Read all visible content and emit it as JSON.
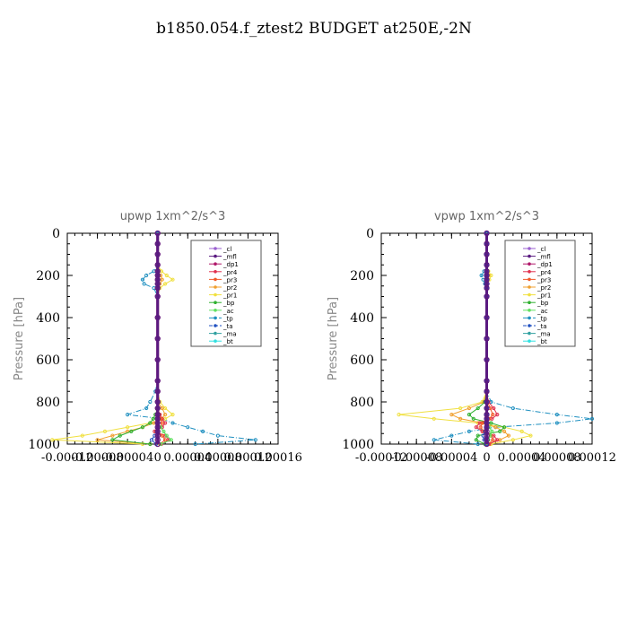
{
  "title": "b1850.054.f_ztest2  BUDGET at250E,-2N",
  "colors": {
    "_cl": "#9a5fd0",
    "_mfl": "#5a1a80",
    "_dp1": "#b0186a",
    "_pr4": "#e0304e",
    "_pr3": "#f05a2a",
    "_pr2": "#f0a030",
    "_pr1": "#f0e040",
    "_bp": "#30b030",
    "_ac": "#60e060",
    "_tp": "#2090c0",
    "_ta": "#2050c0",
    "_ma": "#30a0a0",
    "_bt": "#30e0e0"
  },
  "chart_data": [
    {
      "type": "line",
      "title": "upwp   1xm^2/s^3",
      "ylabel": "Pressure [hPa]",
      "xlabel": "",
      "xlim": [
        -0.00012,
        0.00016
      ],
      "ylim": [
        1000,
        0
      ],
      "x_ticks": [
        "-0.00012",
        "-0.00008",
        "-0.00004",
        "0",
        "0.00004",
        "0.00008",
        "0.00012",
        "0.00016"
      ],
      "y_ticks": [
        "0",
        "200",
        "400",
        "600",
        "800",
        "1000"
      ],
      "legend": [
        "_cl",
        "_mfl",
        "_dp1",
        "_pr4",
        "_pr3",
        "_pr2",
        "_pr1",
        "_bp",
        "_ac",
        "_tp",
        "_ta",
        "_ma",
        "_bt"
      ],
      "legend_position": "top-right",
      "pressure": [
        0,
        50,
        100,
        150,
        180,
        200,
        220,
        240,
        260,
        300,
        400,
        500,
        600,
        700,
        750,
        800,
        830,
        860,
        880,
        900,
        920,
        940,
        960,
        980,
        1000
      ],
      "series": [
        {
          "name": "_tp",
          "values": [
            0,
            0,
            0,
            0,
            -5e-06,
            -1.5e-05,
            -2e-05,
            -1.8e-05,
            -5e-06,
            0,
            0,
            0,
            0,
            0,
            -3e-06,
            -1e-05,
            -1.5e-05,
            -4e-05,
            5e-06,
            2e-05,
            4e-05,
            6e-05,
            8e-05,
            0.00013,
            5e-05
          ]
        },
        {
          "name": "_pr1",
          "values": [
            0,
            0,
            0,
            0,
            5e-06,
            1.2e-05,
            2e-05,
            1e-05,
            3e-06,
            0,
            0,
            0,
            0,
            0,
            0,
            3e-06,
            1e-05,
            2e-05,
            1e-05,
            -1e-05,
            -4e-05,
            -7e-05,
            -0.0001,
            -0.00014,
            -2e-05
          ]
        },
        {
          "name": "_pr2",
          "values": [
            0,
            0,
            0,
            0,
            0,
            4e-06,
            6e-06,
            3e-06,
            0,
            0,
            0,
            0,
            0,
            0,
            0,
            0,
            6e-06,
            1e-05,
            5e-06,
            -5e-06,
            -2e-05,
            -4e-05,
            -6e-05,
            -8e-05,
            -1e-05
          ]
        },
        {
          "name": "_bp",
          "values": [
            0,
            0,
            0,
            0,
            0,
            0,
            0,
            0,
            0,
            0,
            0,
            0,
            0,
            0,
            0,
            0,
            0,
            -3e-06,
            -6e-06,
            -1e-05,
            -2e-05,
            -3.5e-05,
            -5e-05,
            -6e-05,
            -1e-05
          ]
        },
        {
          "name": "_pr4",
          "values": [
            0,
            0,
            0,
            0,
            0,
            0,
            0,
            0,
            0,
            0,
            0,
            0,
            0,
            0,
            0,
            0,
            0,
            3e-06,
            6e-06,
            1e-05,
            6e-06,
            -4e-06,
            1e-05,
            1.5e-05,
            5e-06
          ]
        },
        {
          "name": "_pr3",
          "values": [
            0,
            0,
            0,
            0,
            0,
            0,
            0,
            0,
            0,
            0,
            0,
            0,
            0,
            0,
            0,
            0,
            0,
            2e-06,
            4e-06,
            6e-06,
            4e-06,
            -2e-06,
            6e-06,
            1e-05,
            3e-06
          ]
        },
        {
          "name": "_ac",
          "values": [
            0,
            0,
            0,
            0,
            0,
            0,
            0,
            0,
            0,
            0,
            0,
            0,
            0,
            0,
            0,
            0,
            0,
            0,
            0,
            0,
            4e-06,
            8e-06,
            1.2e-05,
            1.8e-05,
            4e-06
          ]
        },
        {
          "name": "_ta",
          "values": [
            0,
            0,
            0,
            0,
            0,
            0,
            0,
            0,
            0,
            0,
            0,
            0,
            0,
            0,
            0,
            0,
            0,
            0,
            0,
            0,
            0,
            0,
            -4e-06,
            -8e-06,
            -2e-06
          ]
        },
        {
          "name": "_dp1",
          "values": [
            0,
            0,
            0,
            0,
            0,
            0,
            0,
            0,
            0,
            0,
            0,
            0,
            0,
            0,
            0,
            0,
            0,
            0,
            0,
            0,
            0,
            0,
            0,
            0,
            0
          ]
        },
        {
          "name": "_mfl",
          "values": [
            0,
            0,
            0,
            0,
            0,
            0,
            0,
            0,
            0,
            0,
            0,
            0,
            0,
            0,
            0,
            0,
            0,
            0,
            0,
            0,
            0,
            0,
            0,
            0,
            0
          ]
        }
      ]
    },
    {
      "type": "line",
      "title": "vpwp   1xm^2/s^3",
      "ylabel": "Pressure [hPa]",
      "xlabel": "",
      "xlim": [
        -0.00012,
        0.00012
      ],
      "ylim": [
        1000,
        0
      ],
      "x_ticks": [
        "-0.00012",
        "-0.00008",
        "-0.00004",
        "0",
        "0.00004",
        "0.00008",
        "0.00012"
      ],
      "y_ticks": [
        "0",
        "200",
        "400",
        "600",
        "800",
        "1000"
      ],
      "legend": [
        "_cl",
        "_mfl",
        "_dp1",
        "_pr4",
        "_pr3",
        "_pr2",
        "_pr1",
        "_bp",
        "_ac",
        "_tp",
        "_ta",
        "_ma",
        "_bt"
      ],
      "legend_position": "top-right",
      "pressure": [
        0,
        50,
        100,
        150,
        180,
        200,
        220,
        240,
        260,
        300,
        400,
        500,
        600,
        700,
        750,
        800,
        830,
        860,
        880,
        900,
        920,
        940,
        960,
        980,
        1000
      ],
      "series": [
        {
          "name": "_tp",
          "values": [
            0,
            0,
            0,
            0,
            -3e-06,
            -6e-06,
            -4e-06,
            -2e-06,
            0,
            0,
            0,
            0,
            0,
            0,
            0,
            5e-06,
            3e-05,
            8e-05,
            0.00012,
            8e-05,
            1e-05,
            -2e-05,
            -4e-05,
            -6e-05,
            -1e-05
          ]
        },
        {
          "name": "_pr1",
          "values": [
            0,
            0,
            0,
            0,
            2e-06,
            5e-06,
            3e-06,
            1e-06,
            0,
            0,
            0,
            0,
            0,
            0,
            0,
            -5e-06,
            -3e-05,
            -0.0001,
            -6e-05,
            -1e-05,
            2e-05,
            4e-05,
            5e-05,
            3e-05,
            5e-06
          ]
        },
        {
          "name": "_pr2",
          "values": [
            0,
            0,
            0,
            0,
            0,
            2e-06,
            1e-06,
            0,
            0,
            0,
            0,
            0,
            0,
            0,
            0,
            -3e-06,
            -2e-05,
            -4e-05,
            -3e-05,
            -5e-06,
            1e-05,
            2e-05,
            2.5e-05,
            1.5e-05,
            2e-06
          ]
        },
        {
          "name": "_bp",
          "values": [
            0,
            0,
            0,
            0,
            0,
            0,
            0,
            0,
            0,
            0,
            0,
            0,
            0,
            0,
            0,
            -2e-06,
            -1e-05,
            -2e-05,
            -1.5e-05,
            5e-06,
            2e-05,
            1.5e-05,
            -1e-05,
            -1.2e-05,
            -2e-06
          ]
        },
        {
          "name": "_pr4",
          "values": [
            0,
            0,
            0,
            0,
            0,
            0,
            0,
            0,
            0,
            0,
            0,
            0,
            0,
            0,
            0,
            2e-06,
            8e-06,
            1.2e-05,
            6e-06,
            -8e-06,
            -1.2e-05,
            -5e-06,
            8e-06,
            1.2e-05,
            3e-06
          ]
        },
        {
          "name": "_pr3",
          "values": [
            0,
            0,
            0,
            0,
            0,
            0,
            0,
            0,
            0,
            0,
            0,
            0,
            0,
            0,
            0,
            1e-06,
            4e-06,
            7e-06,
            3e-06,
            -5e-06,
            -7e-06,
            -3e-06,
            5e-06,
            7e-06,
            2e-06
          ]
        },
        {
          "name": "_ac",
          "values": [
            0,
            0,
            0,
            0,
            0,
            0,
            0,
            0,
            0,
            0,
            0,
            0,
            0,
            0,
            0,
            0,
            0,
            0,
            0,
            0,
            3e-06,
            6e-06,
            4e-06,
            2e-06,
            0
          ]
        },
        {
          "name": "_ta",
          "values": [
            0,
            0,
            0,
            0,
            0,
            0,
            0,
            0,
            0,
            0,
            0,
            0,
            0,
            0,
            0,
            0,
            0,
            0,
            0,
            0,
            0,
            -2e-06,
            -4e-06,
            -3e-06,
            0
          ]
        },
        {
          "name": "_dp1",
          "values": [
            0,
            0,
            0,
            0,
            0,
            0,
            0,
            0,
            0,
            0,
            0,
            0,
            0,
            0,
            0,
            0,
            0,
            0,
            0,
            0,
            0,
            0,
            0,
            0,
            0
          ]
        },
        {
          "name": "_mfl",
          "values": [
            0,
            0,
            0,
            0,
            0,
            0,
            0,
            0,
            0,
            0,
            0,
            0,
            0,
            0,
            0,
            0,
            0,
            0,
            0,
            0,
            0,
            0,
            0,
            0,
            0
          ]
        }
      ]
    }
  ]
}
